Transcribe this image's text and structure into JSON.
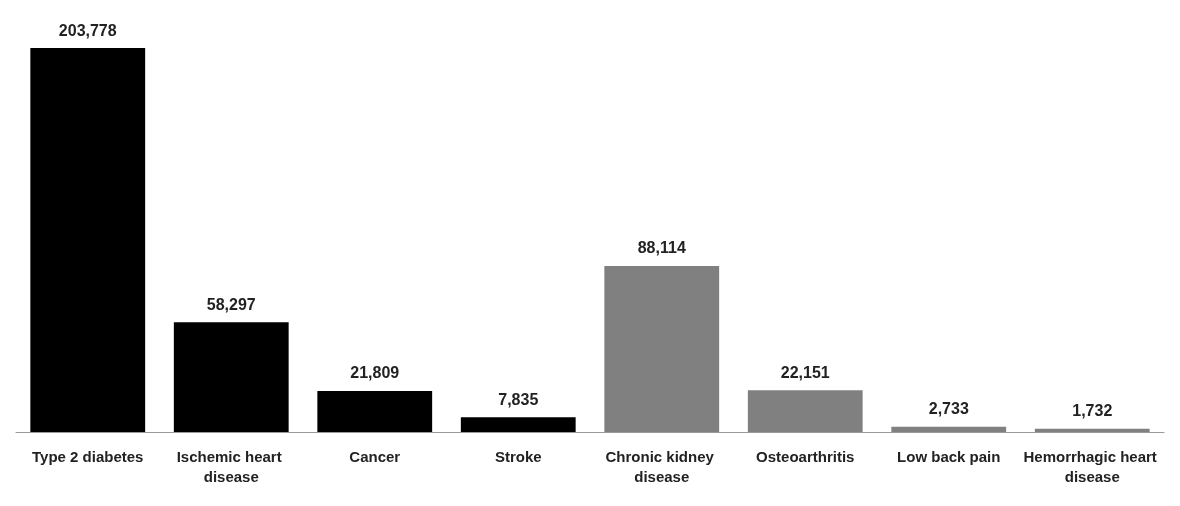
{
  "chart_data": {
    "type": "bar",
    "categories": [
      "Type 2 diabetes",
      "Ischemic heart disease",
      "Cancer",
      "Stroke",
      "Chronic kidney disease",
      "Osteoarthritis",
      "Low back pain",
      "Hemorrhagic heart disease"
    ],
    "values": [
      203778,
      58297,
      21809,
      7835,
      88114,
      22151,
      2733,
      1732
    ],
    "colors": [
      "#000000",
      "#000000",
      "#000000",
      "#000000",
      "#808080",
      "#808080",
      "#808080",
      "#808080"
    ],
    "value_labels": [
      "203,778",
      "58,297",
      "21,809",
      "7,835",
      "88,114",
      "22,151",
      "2,733",
      "1,732"
    ]
  }
}
